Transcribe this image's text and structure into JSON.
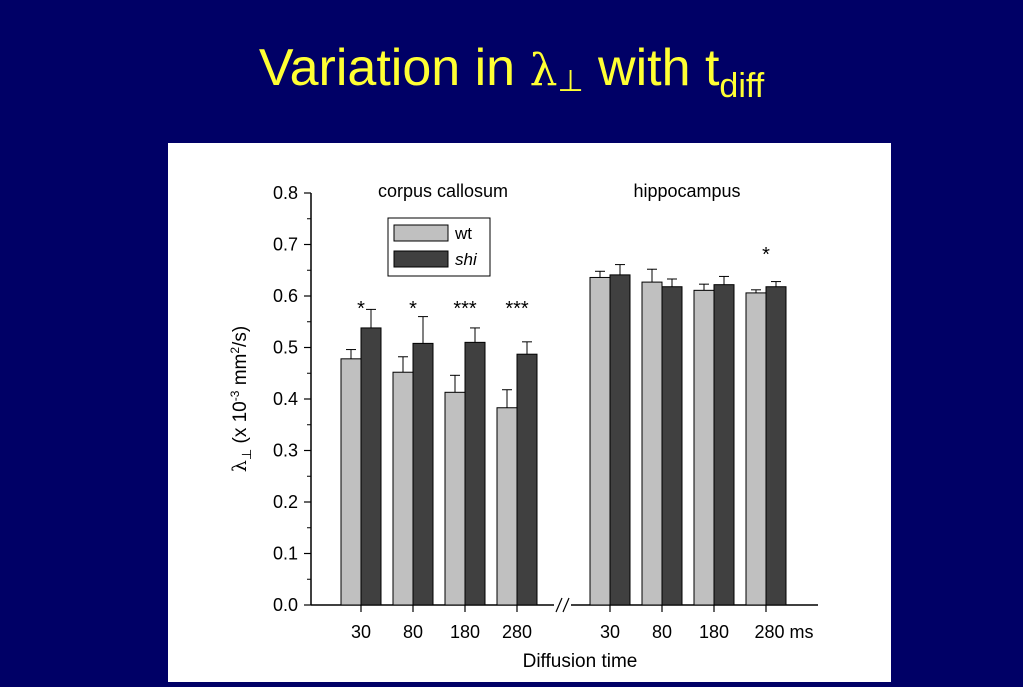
{
  "slide": {
    "title_main": "Variation in ",
    "title_symbol": "λ",
    "title_symbol_sub": "⊥",
    "title_mid": " with t",
    "title_sub": "diff"
  },
  "chart_data": {
    "type": "bar",
    "ylabel": "λ⊥ (x 10-3 mm2/s)",
    "ylabel_parts": {
      "symbol": "λ",
      "symbol_sub": "⊥",
      "text1": " (x 10",
      "exp1": "-3",
      "text2": " mm",
      "exp2": "2",
      "text3": "/s)"
    },
    "xlabel": "Diffusion time",
    "ylim": [
      0,
      0.8
    ],
    "yticks": [
      "0.0",
      "0.1",
      "0.2",
      "0.3",
      "0.4",
      "0.5",
      "0.6",
      "0.7",
      "0.8"
    ],
    "axis_break": "//",
    "legend": {
      "placement": "top-left",
      "entries": [
        {
          "name": "wt",
          "color": "#c0c0c0",
          "italic": false
        },
        {
          "name": "shi",
          "color": "#404040",
          "italic": true
        }
      ]
    },
    "groups": [
      {
        "label": "corpus callosum",
        "categories": [
          "30",
          "80",
          "180",
          "280"
        ],
        "series": [
          {
            "name": "wt",
            "values": [
              0.478,
              0.452,
              0.413,
              0.383
            ],
            "errors": [
              0.018,
              0.03,
              0.033,
              0.035
            ]
          },
          {
            "name": "shi",
            "values": [
              0.538,
              0.508,
              0.51,
              0.487
            ],
            "errors": [
              0.036,
              0.052,
              0.028,
              0.024
            ]
          }
        ],
        "significance": [
          "*",
          "*",
          "***",
          "***"
        ]
      },
      {
        "label": "hippocampus",
        "categories": [
          "30",
          "80",
          "180",
          "280 ms"
        ],
        "series": [
          {
            "name": "wt",
            "values": [
              0.636,
              0.627,
              0.611,
              0.606
            ],
            "errors": [
              0.012,
              0.025,
              0.012,
              0.006
            ]
          },
          {
            "name": "shi",
            "values": [
              0.641,
              0.618,
              0.622,
              0.618
            ],
            "errors": [
              0.02,
              0.015,
              0.016,
              0.01
            ]
          }
        ],
        "significance": [
          "",
          "",
          "",
          "*"
        ]
      }
    ]
  }
}
